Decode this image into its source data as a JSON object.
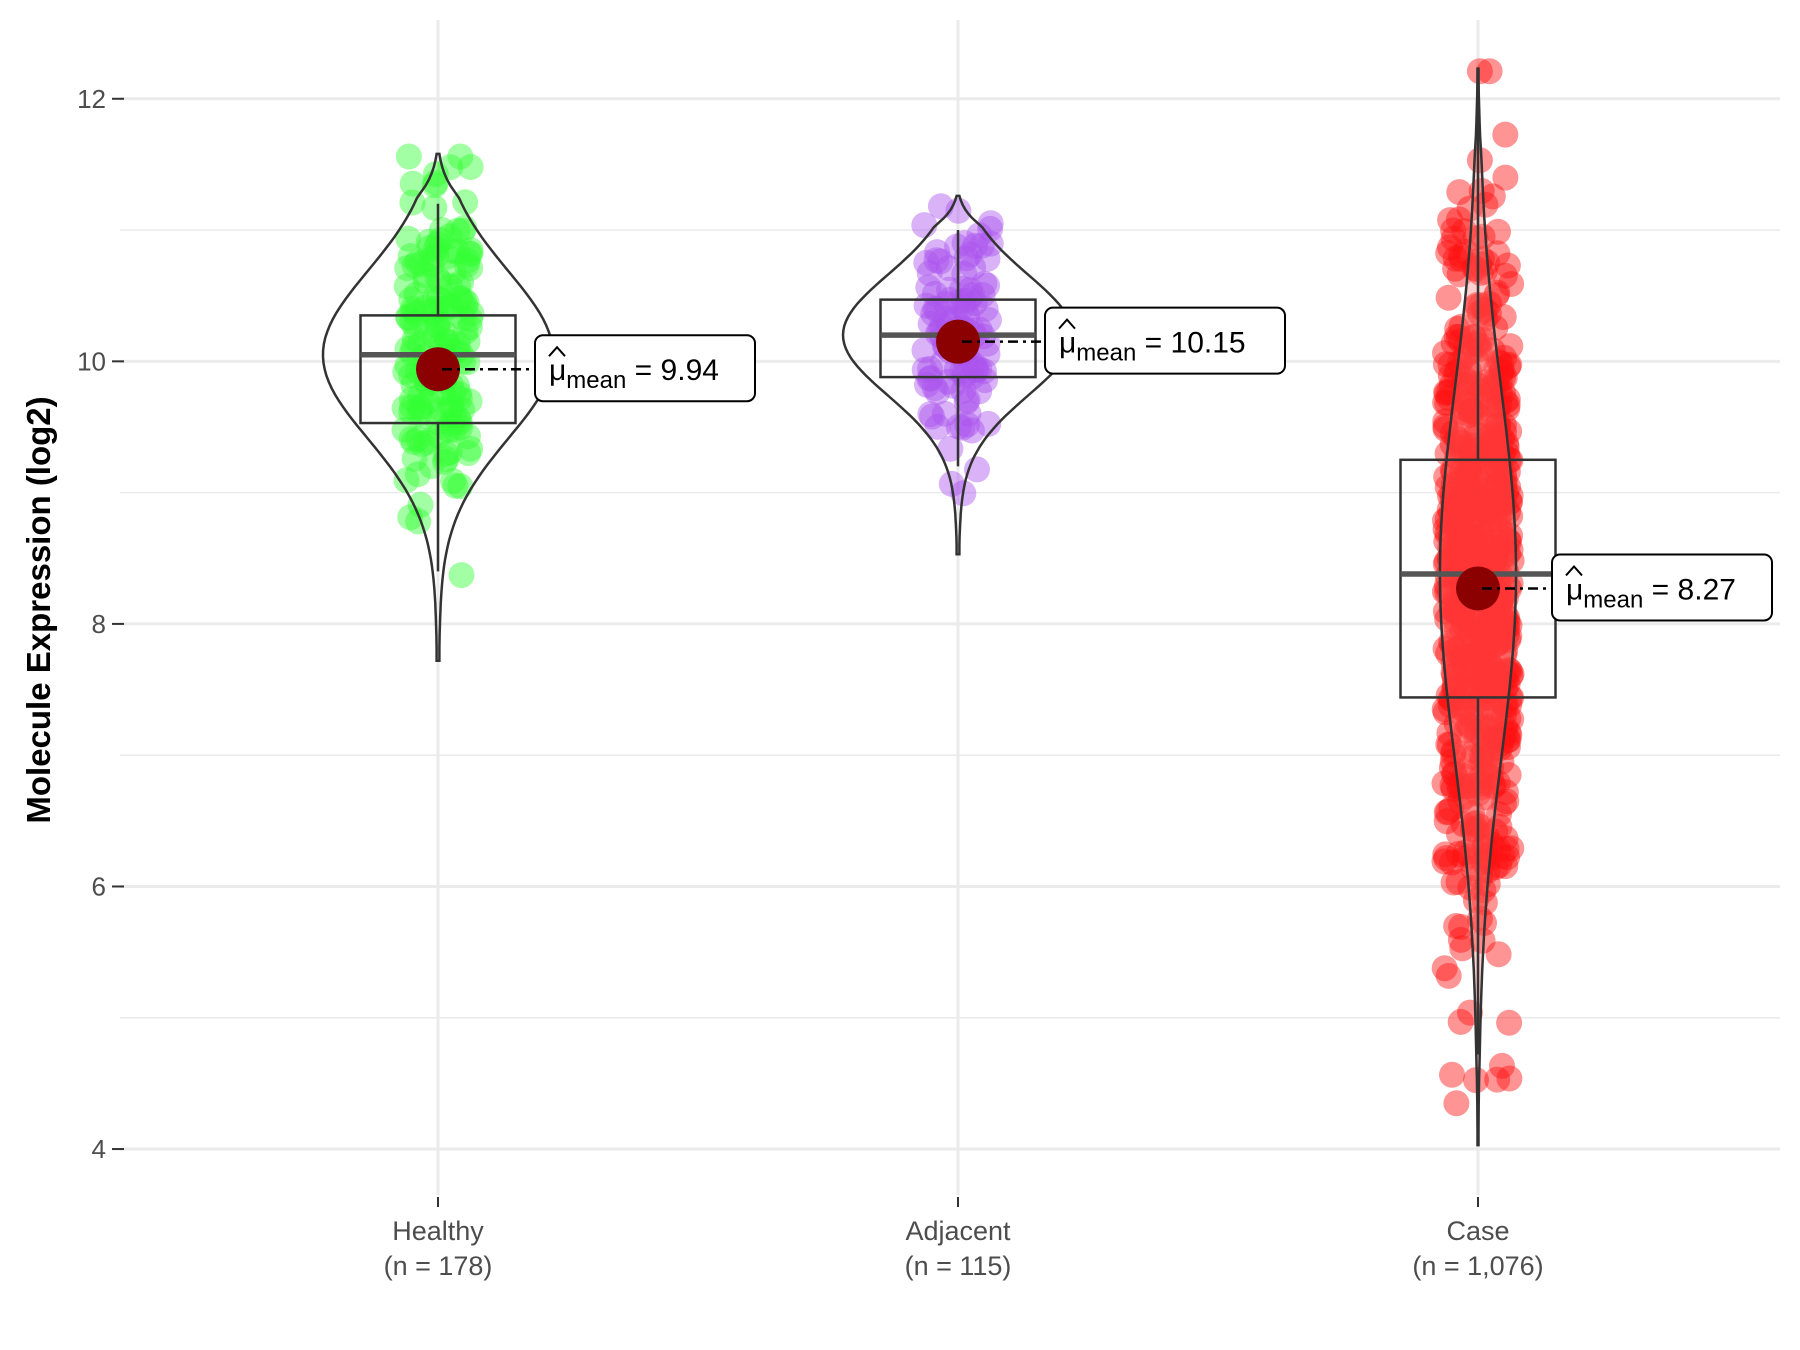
{
  "chart_data": {
    "type": "violin-box-scatter",
    "ylabel": "Molecule Expression (log2)",
    "ylim": [
      3.65,
      12.6
    ],
    "yticks": [
      4,
      6,
      8,
      10,
      12
    ],
    "grid": true,
    "groups": [
      {
        "name": "Healthy",
        "n_label": "(n = 178)",
        "color": "#33ff33",
        "mean": 9.94,
        "mean_label": "9.94",
        "box": {
          "q1": 9.53,
          "median": 10.05,
          "q3": 10.35,
          "whisker_low": 8.4,
          "whisker_high": 11.2
        },
        "violin_range": [
          7.72,
          11.58
        ],
        "points_seed": 17,
        "n": 178
      },
      {
        "name": "Adjacent",
        "n_label": "(n = 115)",
        "color": "#aa55ee",
        "mean": 10.15,
        "mean_label": "10.15",
        "box": {
          "q1": 9.88,
          "median": 10.2,
          "q3": 10.47,
          "whisker_low": 9.2,
          "whisker_high": 11.0
        },
        "violin_range": [
          8.53,
          11.26
        ],
        "points_seed": 29,
        "n": 115
      },
      {
        "name": "Case",
        "n_label": "(n = 1,076)",
        "color": "#ff1111",
        "mean": 8.27,
        "mean_label": "8.27",
        "box": {
          "q1": 7.44,
          "median": 8.38,
          "q3": 9.25,
          "whisker_low": 4.72,
          "whisker_high": 11.97
        },
        "violin_range": [
          4.03,
          12.23
        ],
        "points_seed": 43,
        "n": 1076
      }
    ],
    "mean_symbol": "μ",
    "mean_subscript": "mean",
    "mean_equals": "="
  }
}
